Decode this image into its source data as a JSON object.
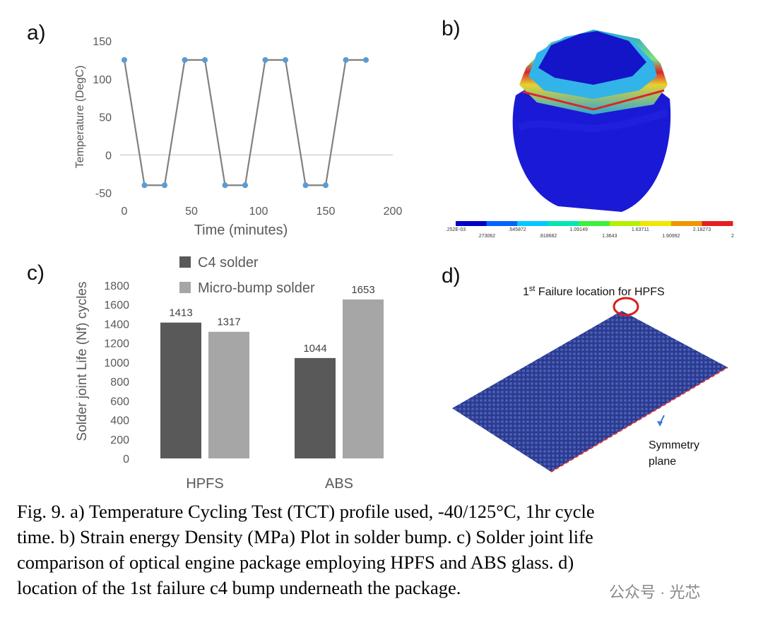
{
  "panel_labels": [
    "a)",
    "b)",
    "c)",
    "d)"
  ],
  "chart_data": [
    {
      "type": "line",
      "x_label": "Time (minutes)",
      "y_label": "Temperature (DegC)",
      "x": [
        0,
        15,
        30,
        45,
        60,
        75,
        90,
        105,
        120,
        135,
        150,
        165,
        180
      ],
      "series": [
        {
          "color": "#808080",
          "marker_color": "#5b9bd5",
          "values": [
            125,
            -40,
            -40,
            125,
            125,
            -40,
            -40,
            125,
            125,
            -40,
            -40,
            125,
            125
          ]
        }
      ],
      "xlim": [
        0,
        200
      ],
      "xticks": [
        0,
        50,
        100,
        150,
        200
      ],
      "ylim": [
        -50,
        150
      ],
      "yticks": [
        -50,
        0,
        50,
        100,
        150
      ]
    },
    {
      "type": "bar",
      "y_label": "Solder joint Life (Nf) cycles",
      "categories": [
        "HPFS",
        "ABS"
      ],
      "series": [
        {
          "name": "C4 solder",
          "color": "#595959",
          "values": [
            1413,
            1044
          ]
        },
        {
          "name": "Micro-bump solder",
          "color": "#a6a6a6",
          "values": [
            1317,
            1653
          ]
        }
      ],
      "ylim": [
        0,
        1800
      ],
      "yticks": [
        0,
        200,
        400,
        600,
        800,
        1000,
        1200,
        1400,
        1600,
        1800
      ]
    }
  ],
  "contour_plot": {
    "colorbar_labels": [
      ".252E-03",
      ".273062",
      ".545872",
      ".818682",
      "1.09149",
      "1.3643",
      "1.63711",
      "1.90992",
      "2.18273",
      "2"
    ]
  },
  "failure_map": {
    "failure_number": "1",
    "failure_suffix": "st",
    "failure_text": " Failure location for HPFS",
    "symmetry_lines": [
      "Symmetry",
      "plane"
    ]
  },
  "caption": [
    "Fig. 9. a) Temperature Cycling Test (TCT) profile used, -40/125°C, 1hr cycle",
    "time.  b) Strain energy Density (MPa) Plot in solder bump. c) Solder joint life",
    "comparison of optical engine package employing HPFS and ABS glass. d)",
    "location of the 1st failure c4 bump underneath the package."
  ],
  "watermark": "公众号 · 光芯"
}
